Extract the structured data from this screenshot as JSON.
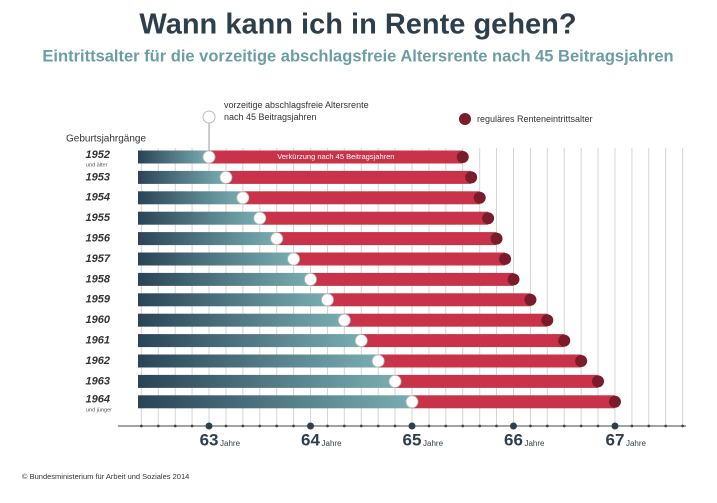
{
  "chart_data": {
    "type": "range-bar",
    "title": "Wann kann ich in Rente gehen?",
    "subtitle": "Eintrittsalter für die vorzeitige abschlagsfreie Altersrente nach 45 Beitragsjahren",
    "y_label": "Geburtsjahrgänge",
    "categories": [
      "1952",
      "1953",
      "1954",
      "1955",
      "1956",
      "1957",
      "1958",
      "1959",
      "1960",
      "1961",
      "1962",
      "1963",
      "1964"
    ],
    "category_notes": [
      "und älter",
      null,
      null,
      null,
      null,
      null,
      null,
      null,
      null,
      null,
      null,
      null,
      "und jünger"
    ],
    "series": [
      {
        "name": "vorzeitige abschlagsfreie Altersrente\nnach 45 Beitragsjahren",
        "color": "#ffffff",
        "values": [
          63,
          63.167,
          63.333,
          63.5,
          63.667,
          63.833,
          64,
          64.167,
          64.333,
          64.5,
          64.667,
          64.833,
          65
        ]
      },
      {
        "name": "reguläres Renteneintrittsalter",
        "color": "#7a1c2a",
        "values": [
          65.5,
          65.583,
          65.667,
          65.75,
          65.833,
          65.917,
          66,
          66.167,
          66.333,
          66.5,
          66.667,
          66.833,
          67
        ]
      }
    ],
    "bar_gradient": [
      "#2a4457",
      "#78adb1"
    ],
    "range_color": "#c8334a",
    "annotation": "Verkürzung nach 45 Beitragsjahren",
    "xlim": [
      62.3,
      67.7
    ],
    "xticks": [
      63,
      64,
      65,
      66,
      67
    ],
    "x_unit": "Jahre",
    "minor_xticks": [
      62.333,
      62.5,
      62.667,
      62.833,
      63.167,
      63.333,
      63.5,
      63.667,
      63.833,
      64.167,
      64.333,
      64.5,
      64.667,
      64.833,
      65.167,
      65.333,
      65.5,
      65.667,
      65.833,
      66.167,
      66.333,
      66.5,
      66.667,
      66.833,
      67.167,
      67.333,
      67.5,
      67.667
    ],
    "grid": true,
    "footer": "© Bundesministerium für Arbeit und Soziales 2014"
  }
}
